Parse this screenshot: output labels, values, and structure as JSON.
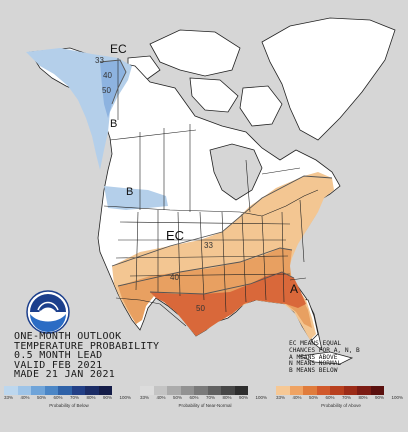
{
  "map_labels": {
    "ec_top": "EC",
    "b_north": "B",
    "b_west": "B",
    "ec_center": "EC",
    "a_southeast": "A"
  },
  "contour_labels": [
    "33",
    "40",
    "50",
    "33",
    "40",
    "50"
  ],
  "outlook_text": [
    "ONE-MONTH OUTLOOK",
    "TEMPERATURE PROBABILITY",
    "0.5 MONTH LEAD",
    "VALID FEB 2021",
    "MADE 21 JAN 2021"
  ],
  "key_text": [
    "EC MEANS EQUAL",
    "CHANCES FOR A, N, B",
    "A MEANS ABOVE",
    "N MEANS NORMAL",
    "B MEANS BELOW"
  ],
  "logo_text": "NOAA",
  "legend": {
    "below": {
      "caption": "Probability of Below",
      "ticks": [
        "33%",
        "40%",
        "50%",
        "60%",
        "70%",
        "80%",
        "90%",
        "100%"
      ],
      "colors": [
        "#bdd7ee",
        "#9ec4e8",
        "#6fa4d9",
        "#4b86c6",
        "#2f62a8",
        "#223f86",
        "#1b2c66",
        "#141c48"
      ]
    },
    "normal": {
      "caption": "Probability of Near-Normal",
      "ticks": [
        "33%",
        "40%",
        "50%",
        "60%",
        "70%",
        "80%",
        "90%",
        "100%"
      ],
      "colors": [
        "#dcdcdc",
        "#c4c4c4",
        "#ababab",
        "#929292",
        "#7a7a7a",
        "#616161",
        "#474747",
        "#2e2e2e"
      ]
    },
    "above": {
      "caption": "Probability of Above",
      "ticks": [
        "33%",
        "40%",
        "50%",
        "60%",
        "70%",
        "80%",
        "90%",
        "100%"
      ],
      "colors": [
        "#f6c895",
        "#efa363",
        "#e07c3c",
        "#d1592b",
        "#b8401f",
        "#9c2c18",
        "#7c1c14",
        "#5a100e"
      ]
    }
  },
  "colors": {
    "background": "#d6d6d6",
    "land": "#ffffff",
    "ocean": "#d6d6d6",
    "below_light": "#b4cfea",
    "below_mid": "#8db3e0",
    "above_light": "#f3c692",
    "above_mid": "#e8a061",
    "above_dark": "#d9683a"
  }
}
